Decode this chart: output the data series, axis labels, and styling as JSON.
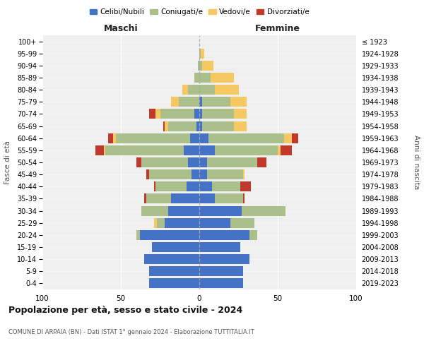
{
  "age_groups": [
    "0-4",
    "5-9",
    "10-14",
    "15-19",
    "20-24",
    "25-29",
    "30-34",
    "35-39",
    "40-44",
    "45-49",
    "50-54",
    "55-59",
    "60-64",
    "65-69",
    "70-74",
    "75-79",
    "80-84",
    "85-89",
    "90-94",
    "95-99",
    "100+"
  ],
  "birth_years": [
    "2019-2023",
    "2014-2018",
    "2009-2013",
    "2004-2008",
    "1999-2003",
    "1994-1998",
    "1989-1993",
    "1984-1988",
    "1979-1983",
    "1974-1978",
    "1969-1973",
    "1964-1968",
    "1959-1963",
    "1954-1958",
    "1949-1953",
    "1944-1948",
    "1939-1943",
    "1934-1938",
    "1929-1933",
    "1924-1928",
    "≤ 1923"
  ],
  "maschi": {
    "celibi": [
      32,
      32,
      35,
      30,
      38,
      22,
      20,
      18,
      8,
      5,
      7,
      10,
      6,
      2,
      3,
      0,
      0,
      0,
      0,
      0,
      0
    ],
    "coniugati": [
      0,
      0,
      0,
      0,
      2,
      5,
      17,
      16,
      20,
      27,
      30,
      50,
      47,
      18,
      22,
      13,
      7,
      3,
      1,
      0,
      0
    ],
    "vedovi": [
      0,
      0,
      0,
      0,
      0,
      2,
      0,
      0,
      0,
      0,
      0,
      1,
      2,
      2,
      3,
      5,
      4,
      0,
      0,
      0,
      0
    ],
    "divorziati": [
      0,
      0,
      0,
      0,
      0,
      0,
      0,
      1,
      1,
      2,
      3,
      5,
      3,
      1,
      4,
      0,
      0,
      0,
      0,
      0,
      0
    ]
  },
  "femmine": {
    "nubili": [
      28,
      28,
      32,
      26,
      32,
      20,
      27,
      10,
      8,
      5,
      5,
      10,
      6,
      2,
      2,
      2,
      0,
      0,
      0,
      0,
      0
    ],
    "coniugate": [
      0,
      0,
      0,
      0,
      5,
      15,
      28,
      18,
      18,
      23,
      32,
      40,
      48,
      20,
      20,
      18,
      10,
      7,
      2,
      1,
      0
    ],
    "vedove": [
      0,
      0,
      0,
      0,
      0,
      0,
      0,
      0,
      0,
      1,
      0,
      2,
      5,
      8,
      8,
      10,
      15,
      15,
      7,
      2,
      0
    ],
    "divorziate": [
      0,
      0,
      0,
      0,
      0,
      0,
      0,
      1,
      7,
      0,
      6,
      7,
      4,
      0,
      0,
      0,
      0,
      0,
      0,
      0,
      0
    ]
  },
  "colors": {
    "celibi": "#4472C4",
    "coniugati": "#AABF8A",
    "vedovi": "#F5C862",
    "divorziati": "#C0392B"
  },
  "xlim": 100,
  "title": "Popolazione per età, sesso e stato civile - 2024",
  "subtitle1": "COMUNE DI ARPAIA (BN) - Dati ISTAT 1° gennaio 2024 - Elaborazione TUTTITALIA.IT",
  "ylabel_left": "Fasce di età",
  "ylabel_right": "Anni di nascita",
  "xlabel_left": "Maschi",
  "xlabel_right": "Femmine",
  "bg_color": "#f0f0f0"
}
